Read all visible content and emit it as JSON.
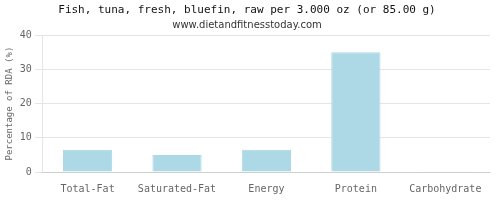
{
  "chart_data": {
    "type": "bar",
    "title": "Fish, tuna, fresh, bluefin, raw per 3.000 oz (or 85.00 g)",
    "subtitle": "www.dietandfitnesstoday.com",
    "categories": [
      "Total-Fat",
      "Saturated-Fat",
      "Energy",
      "Protein",
      "Carbohydrate"
    ],
    "values": [
      6.5,
      5.0,
      6.5,
      35.0,
      0.1
    ],
    "color": "#add8e6",
    "ylabel": "Percentage of RDA (%)",
    "ylim": [
      0,
      40
    ],
    "yticks": [
      0,
      10,
      20,
      30,
      40
    ],
    "grid": true
  }
}
